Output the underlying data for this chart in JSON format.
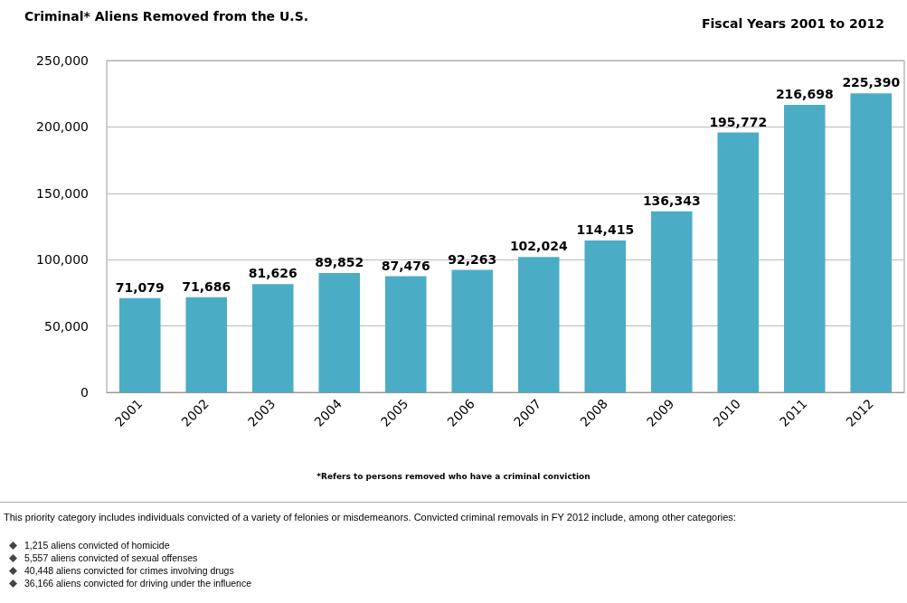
{
  "chart_data": {
    "type": "bar",
    "title": "Criminal* Aliens Removed from the U.S.",
    "subtitle": "Fiscal Years 2001 to 2012",
    "categories": [
      "2001",
      "2002",
      "2003",
      "2004",
      "2005",
      "2006",
      "2007",
      "2008",
      "2009",
      "2010",
      "2011",
      "2012"
    ],
    "values": [
      71079,
      71686,
      81626,
      89852,
      87476,
      92263,
      102024,
      114415,
      136343,
      195772,
      216698,
      225390
    ],
    "value_labels": [
      "71,079",
      "71,686",
      "81,626",
      "89,852",
      "87,476",
      "92,263",
      "102,024",
      "114,415",
      "136,343",
      "195,772",
      "216,698",
      "225,390"
    ],
    "color": "#4bacc6",
    "ylim": [
      0,
      250000
    ],
    "yticks": [
      0,
      {
        "value": 50000,
        "label": "50,000"
      },
      {
        "value": 100000,
        "label": "100,000"
      },
      {
        "value": 150000,
        "label": "150,000"
      },
      {
        "value": 200000,
        "label": "200,000"
      },
      {
        "value": 250000,
        "label": "250,000"
      }
    ],
    "grid": "y",
    "annotations": [
      "*Refers to persons removed who have a criminal conviction",
      "This priority category includes individuals convicted of a variety of felonies or misdemeanors. Convicted criminal removals in FY 2012 include, among other categories:",
      "1,215 aliens convicted of homicide",
      "5,557 aliens convicted of sexual offenses",
      "40,448 aliens convicted for crimes involving drugs",
      "36,166 aliens convicted for driving under the influence"
    ]
  }
}
